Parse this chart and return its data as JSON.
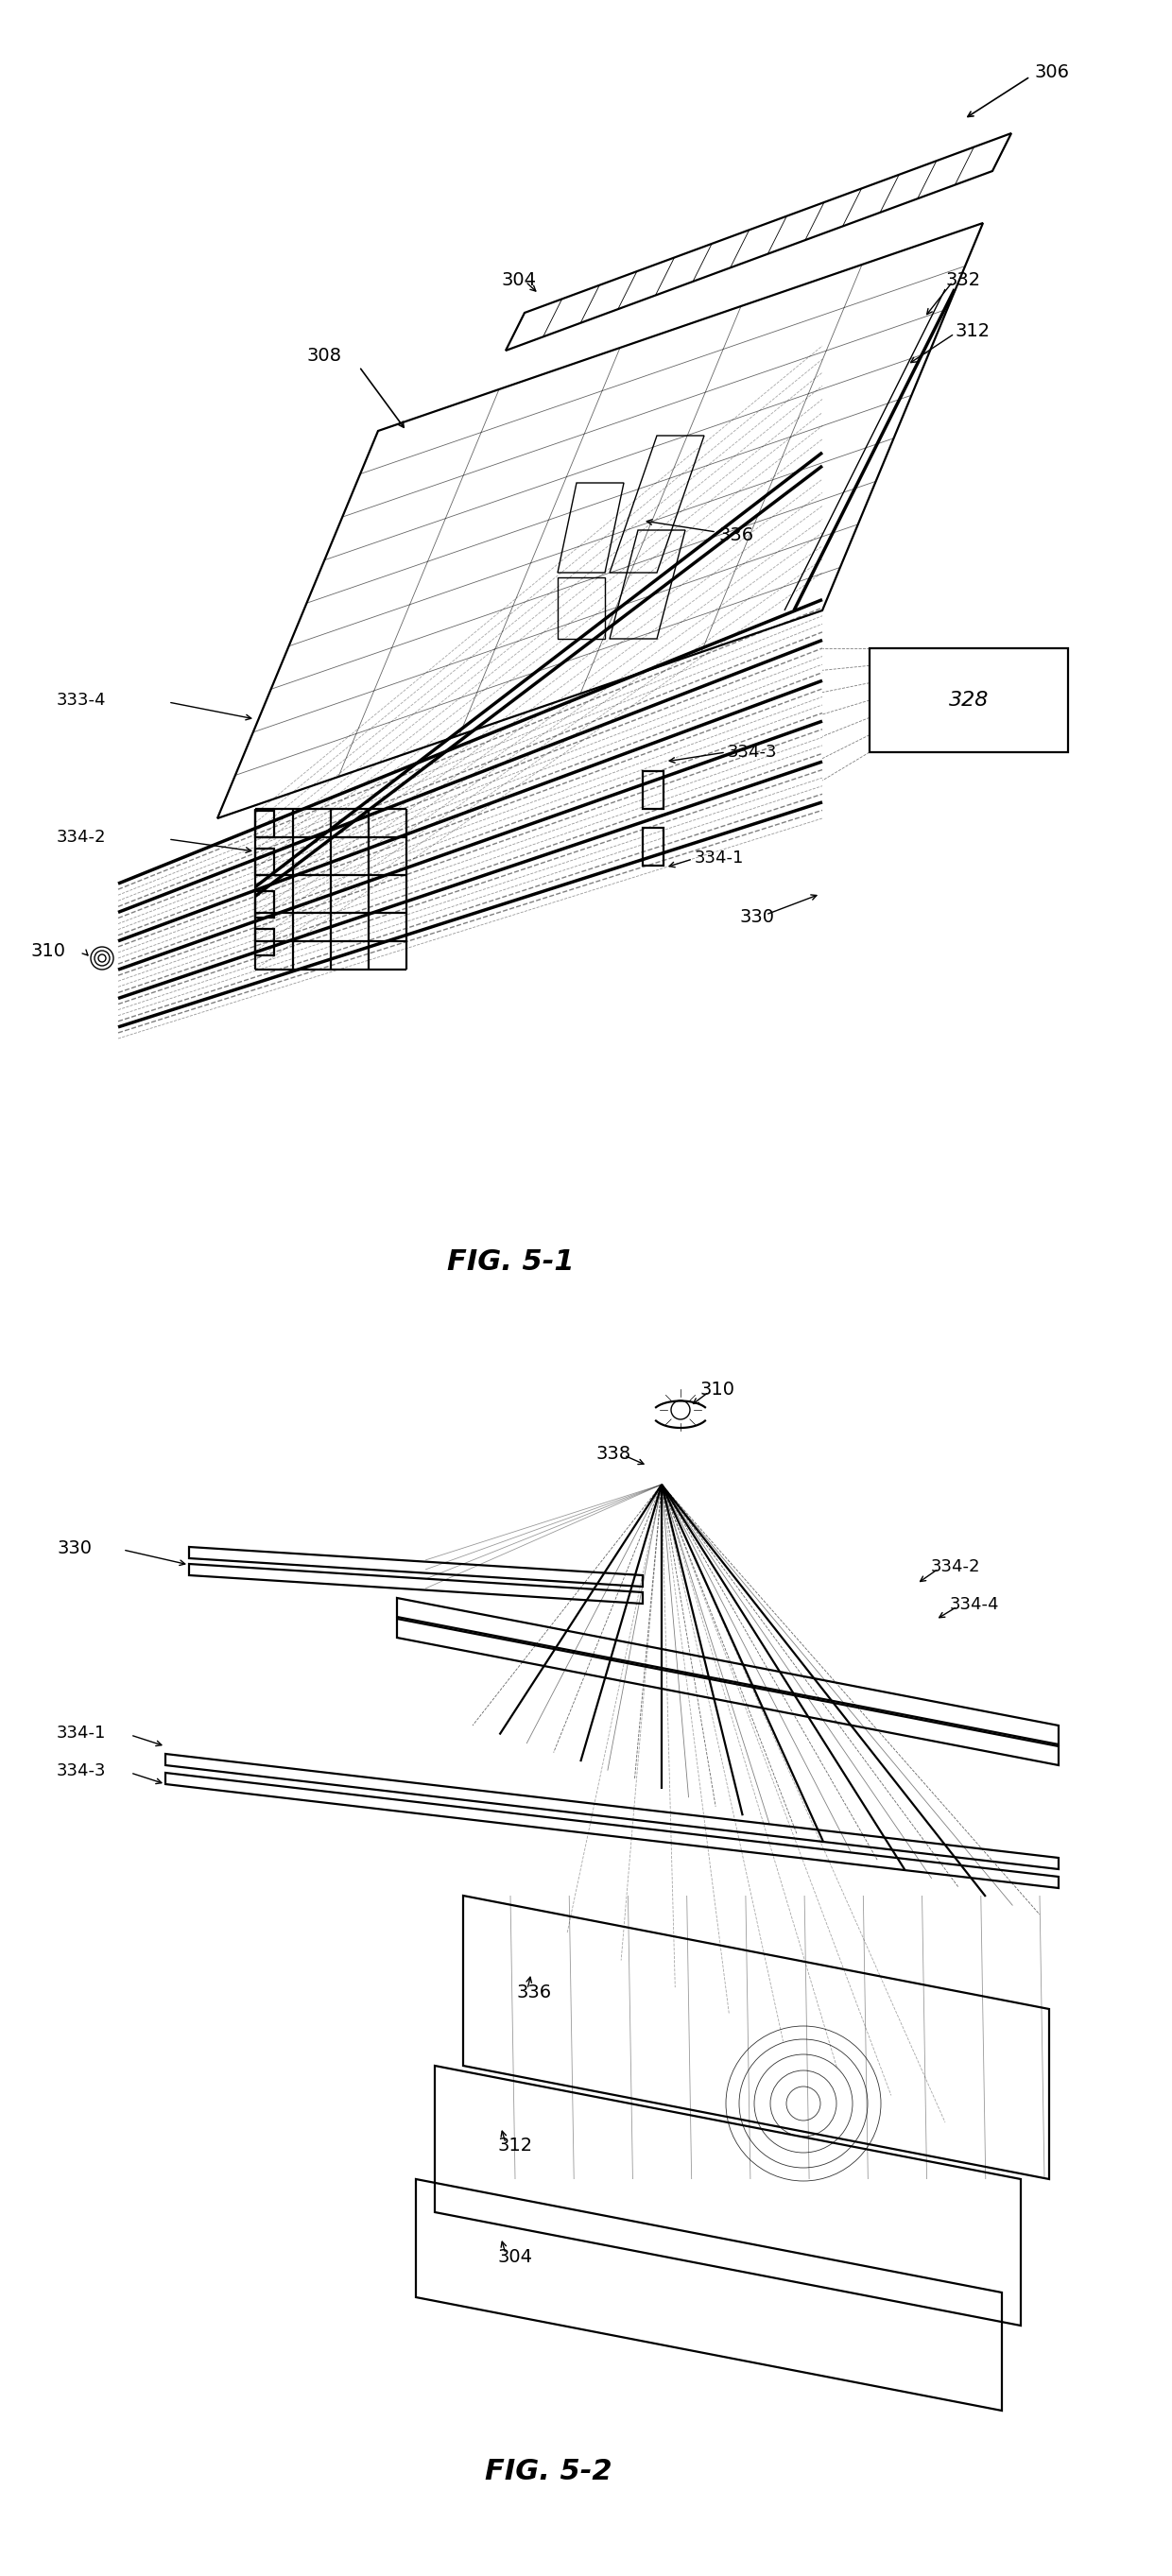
{
  "fig_width": 12.4,
  "fig_height": 27.26,
  "bg_color": "#ffffff",
  "fig1_title": "FIG. 5-1",
  "fig2_title": "FIG. 5-2"
}
